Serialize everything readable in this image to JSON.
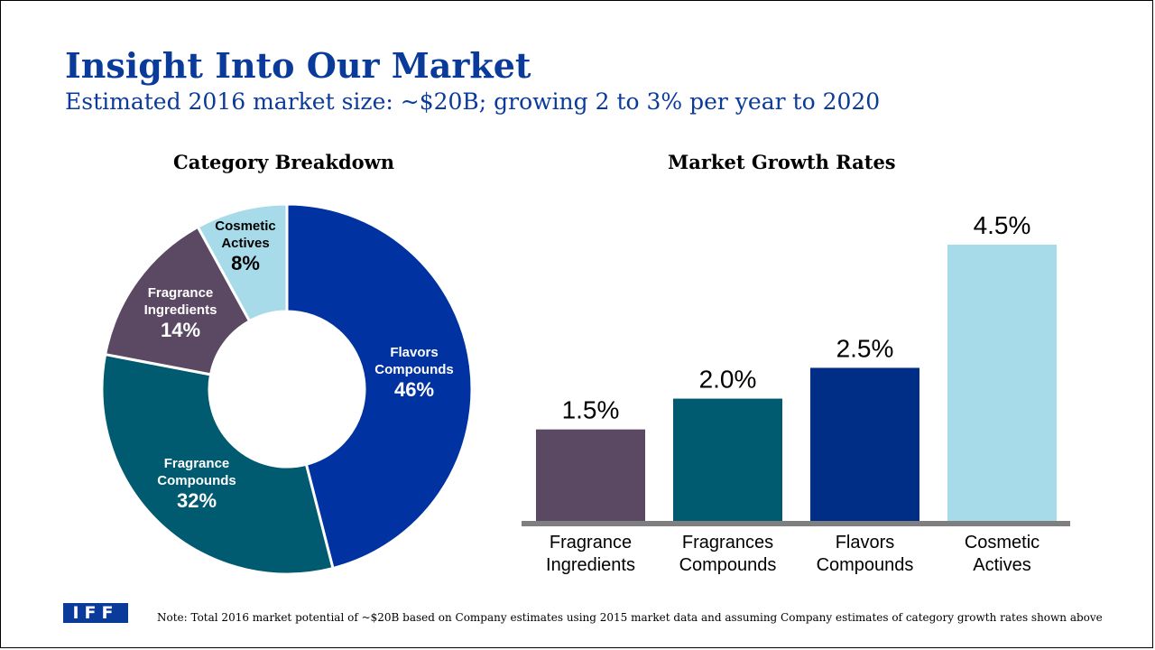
{
  "header": {
    "title": "Insight Into Our Market",
    "subtitle": "Estimated 2016 market size: ~$20B; growing 2 to 3% per year to 2020"
  },
  "footer": {
    "logo_text": "IFF",
    "note": "Note: Total 2016 market potential of ~$20B based on Company estimates using 2015 market data and assuming Company estimates of category growth rates shown above"
  },
  "chart_data": [
    {
      "type": "pie",
      "title": "Category Breakdown",
      "donut": true,
      "slices": [
        {
          "name": [
            "Flavors",
            "Compounds"
          ],
          "value": 46,
          "label": "46%",
          "color": "#0033a1"
        },
        {
          "name": [
            "Fragrance",
            "Compounds"
          ],
          "value": 32,
          "label": "32%",
          "color": "#005a70"
        },
        {
          "name": [
            "Fragrance",
            "Ingredients"
          ],
          "value": 14,
          "label": "14%",
          "color": "#5b4964"
        },
        {
          "name": [
            "Cosmetic",
            "Actives"
          ],
          "value": 8,
          "label": "8%",
          "color": "#a8dbea"
        }
      ]
    },
    {
      "type": "bar",
      "title": "Market Growth Rates",
      "categories": [
        [
          "Fragrance",
          "Ingredients"
        ],
        [
          "Fragrances",
          "Compounds"
        ],
        [
          "Flavors",
          "Compounds"
        ],
        [
          "Cosmetic",
          "Actives"
        ]
      ],
      "values": [
        1.5,
        2.0,
        2.5,
        4.5
      ],
      "labels": [
        "1.5%",
        "2.0%",
        "2.5%",
        "4.5%"
      ],
      "colors": [
        "#5b4964",
        "#005a70",
        "#002d86",
        "#a8dbea"
      ],
      "axis_color": "#7f7f7f",
      "ylim": [
        0,
        4.5
      ]
    }
  ]
}
